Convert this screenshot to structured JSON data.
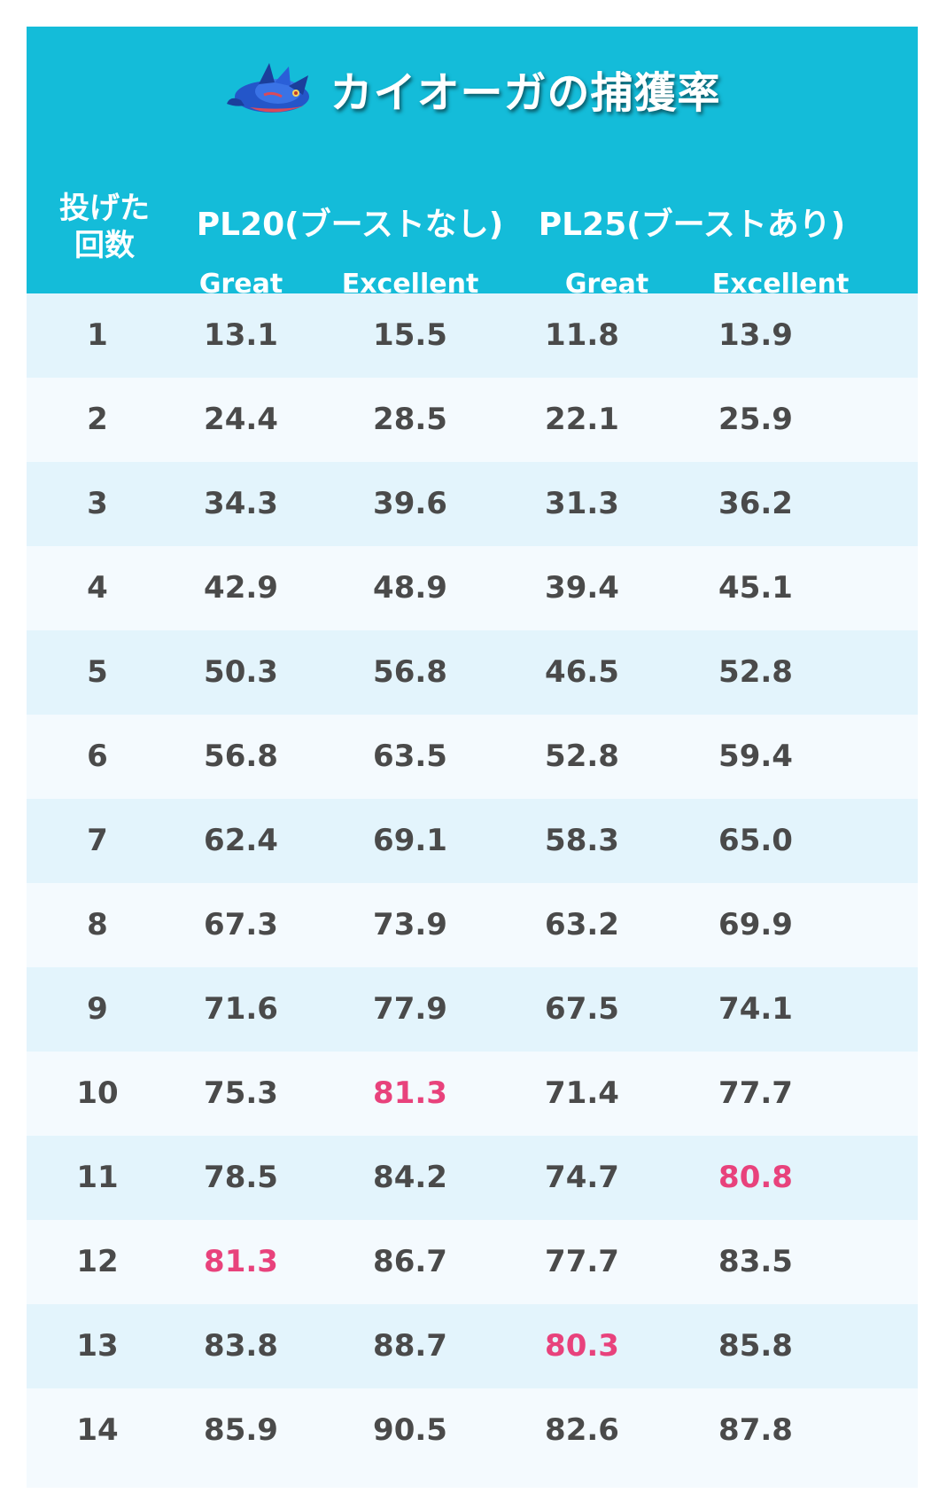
{
  "title": "カイオーガの捕獲率",
  "title_icon": "kyogre-pokemon-icon",
  "header": {
    "throws_label_line1": "投げた",
    "throws_label_line2": "回数",
    "groups": [
      {
        "label": "PL20(ブーストなし)",
        "sub": [
          "Great",
          "Excellent"
        ]
      },
      {
        "label": "PL25(ブーストあり)",
        "sub": [
          "Great",
          "Excellent"
        ]
      }
    ]
  },
  "colors": {
    "header_bg": "#14bcd9",
    "row_odd": "#e3f4fc",
    "row_even": "#f4fafe",
    "text": "#4a4a4a",
    "highlight": "#e8427c"
  },
  "rows": [
    {
      "n": "1",
      "v": [
        "13.1",
        "15.5",
        "11.8",
        "13.9"
      ],
      "hl": [
        false,
        false,
        false,
        false
      ]
    },
    {
      "n": "2",
      "v": [
        "24.4",
        "28.5",
        "22.1",
        "25.9"
      ],
      "hl": [
        false,
        false,
        false,
        false
      ]
    },
    {
      "n": "3",
      "v": [
        "34.3",
        "39.6",
        "31.3",
        "36.2"
      ],
      "hl": [
        false,
        false,
        false,
        false
      ]
    },
    {
      "n": "4",
      "v": [
        "42.9",
        "48.9",
        "39.4",
        "45.1"
      ],
      "hl": [
        false,
        false,
        false,
        false
      ]
    },
    {
      "n": "5",
      "v": [
        "50.3",
        "56.8",
        "46.5",
        "52.8"
      ],
      "hl": [
        false,
        false,
        false,
        false
      ]
    },
    {
      "n": "6",
      "v": [
        "56.8",
        "63.5",
        "52.8",
        "59.4"
      ],
      "hl": [
        false,
        false,
        false,
        false
      ]
    },
    {
      "n": "7",
      "v": [
        "62.4",
        "69.1",
        "58.3",
        "65.0"
      ],
      "hl": [
        false,
        false,
        false,
        false
      ]
    },
    {
      "n": "8",
      "v": [
        "67.3",
        "73.9",
        "63.2",
        "69.9"
      ],
      "hl": [
        false,
        false,
        false,
        false
      ]
    },
    {
      "n": "9",
      "v": [
        "71.6",
        "77.9",
        "67.5",
        "74.1"
      ],
      "hl": [
        false,
        false,
        false,
        false
      ]
    },
    {
      "n": "10",
      "v": [
        "75.3",
        "81.3",
        "71.4",
        "77.7"
      ],
      "hl": [
        false,
        true,
        false,
        false
      ]
    },
    {
      "n": "11",
      "v": [
        "78.5",
        "84.2",
        "74.7",
        "80.8"
      ],
      "hl": [
        false,
        false,
        false,
        true
      ]
    },
    {
      "n": "12",
      "v": [
        "81.3",
        "86.7",
        "77.7",
        "83.5"
      ],
      "hl": [
        true,
        false,
        false,
        false
      ]
    },
    {
      "n": "13",
      "v": [
        "83.8",
        "88.7",
        "80.3",
        "85.8"
      ],
      "hl": [
        false,
        false,
        true,
        false
      ]
    },
    {
      "n": "14",
      "v": [
        "85.9",
        "90.5",
        "82.6",
        "87.8"
      ],
      "hl": [
        false,
        false,
        false,
        false
      ]
    }
  ]
}
